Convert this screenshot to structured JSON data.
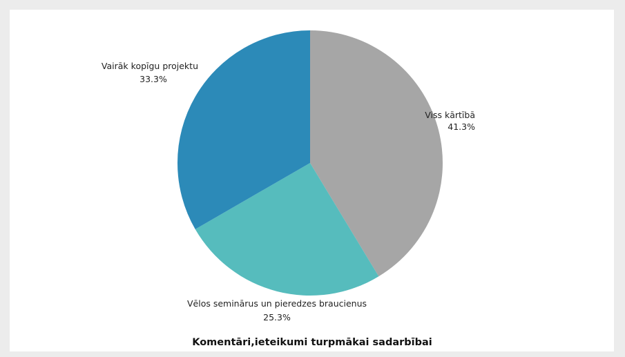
{
  "chart_data": {
    "type": "pie",
    "title": "Komentāri,ieteikumi turpmākai sadarbībai",
    "slices": [
      {
        "label": "Viss kārtībā",
        "value": 41.3,
        "value_label": "41.3%",
        "color": "#a6a6a6"
      },
      {
        "label": "Vēlos seminārus un pieredzes braucienus",
        "value": 25.3,
        "value_label": "25.3%",
        "color": "#56bcbd"
      },
      {
        "label": "Vairāk kopīgu projektu",
        "value": 33.3,
        "value_label": "33.3%",
        "color": "#2c8ab8"
      }
    ],
    "start_angle": "12 o'clock",
    "direction": "clockwise"
  }
}
